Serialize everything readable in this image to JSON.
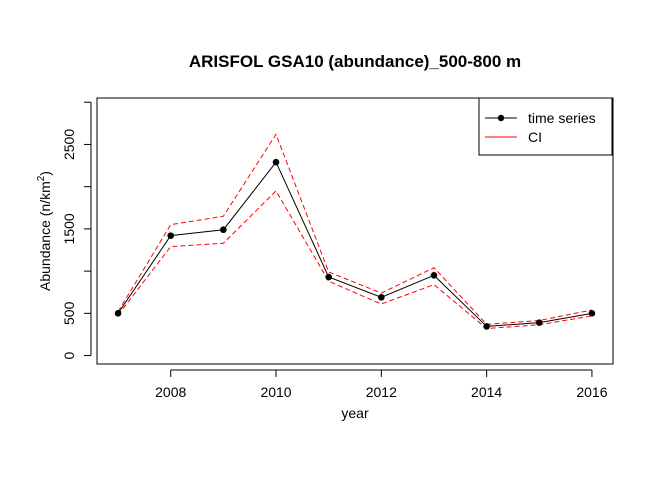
{
  "chart_data": {
    "type": "line",
    "title": "ARISFOL GSA10 (abundance)_500-800 m",
    "xlabel": "year",
    "ylabel": "Abundance",
    "ylabel_unit_prefix": "n/km",
    "ylabel_unit_sup": "2",
    "xlim": [
      2006.6,
      2016.4
    ],
    "ylim": [
      -100,
      3050
    ],
    "x_ticks": [
      "2008",
      "2010",
      "2012",
      "2014",
      "2016"
    ],
    "y_ticks": [
      "0",
      "500",
      "1500",
      "2500"
    ],
    "y_minor_ticks": [
      1000,
      2000,
      3000
    ],
    "grid": false,
    "legend": {
      "position": "top-right"
    },
    "x": [
      2007,
      2008,
      2009,
      2010,
      2011,
      2012,
      2013,
      2014,
      2015,
      2016
    ],
    "series": [
      {
        "name": "time series",
        "style": "solid-with-points",
        "color": "#000000",
        "values": [
          500,
          1420,
          1490,
          2290,
          930,
          690,
          950,
          345,
          390,
          500
        ]
      },
      {
        "name": "CI",
        "style": "dashed",
        "color": "#ff0000",
        "values_upper": [
          520,
          1550,
          1650,
          2620,
          990,
          740,
          1040,
          370,
          415,
          540
        ],
        "values_lower": [
          480,
          1290,
          1330,
          1950,
          880,
          610,
          840,
          320,
          365,
          470
        ]
      }
    ]
  }
}
